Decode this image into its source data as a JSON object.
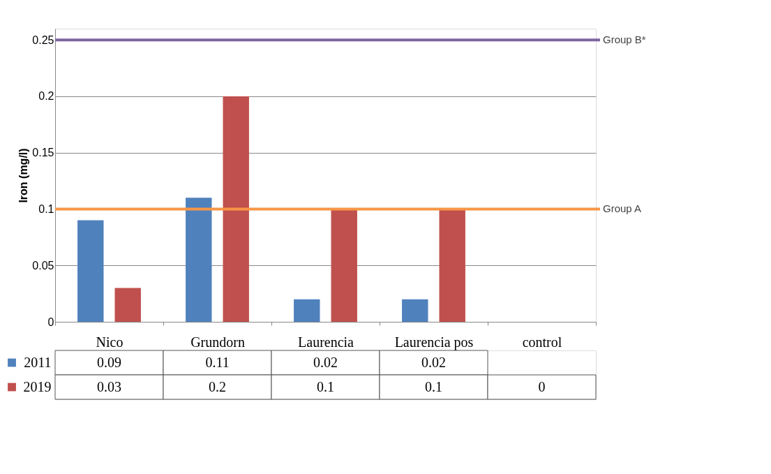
{
  "chart_data": {
    "type": "bar",
    "ylabel": "Iron (mg/l)",
    "categories": [
      "Nico",
      "Grundorn",
      "Laurencia",
      "Laurencia pos",
      "control"
    ],
    "series": [
      {
        "name": "2011",
        "color": "#4f81bd",
        "values": [
          0.09,
          0.11,
          0.02,
          0.02,
          null
        ]
      },
      {
        "name": "2019",
        "color": "#c0504d",
        "values": [
          0.03,
          0.2,
          0.1,
          0.1,
          0
        ]
      }
    ],
    "ylim": [
      0,
      0.26
    ],
    "yticks": [
      0,
      0.05,
      0.1,
      0.15,
      0.2,
      0.25
    ],
    "ref_lines": [
      {
        "axis": "y",
        "value": 0.25,
        "label": "Group B*",
        "color": "#8064a2"
      },
      {
        "axis": "y",
        "value": 0.1,
        "label": "Group A",
        "color": "#f79646"
      }
    ],
    "grid": "y",
    "legend": "bottom",
    "data_labels": true
  }
}
